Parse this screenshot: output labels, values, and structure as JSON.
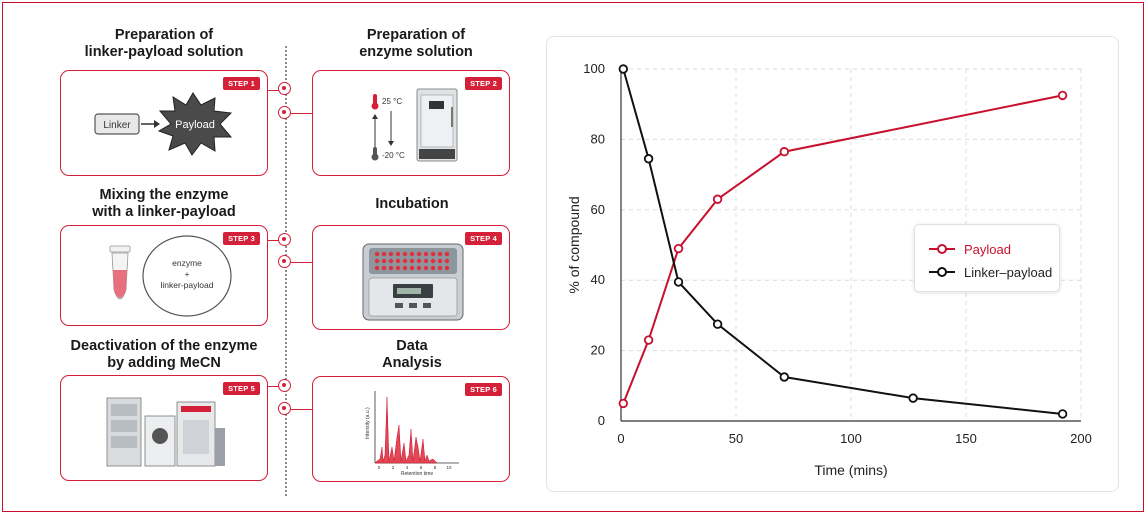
{
  "accent_color": "#d5203a",
  "workflow": {
    "steps": [
      {
        "heading": "Preparation of\nlinker-payload solution",
        "badge": "STEP 1",
        "linker": "Linker",
        "payload": "Payload"
      },
      {
        "heading": "Preparation of\nenzyme solution",
        "badge": "STEP 2",
        "temp_high": "25 °C",
        "temp_low": "-20 °C"
      },
      {
        "heading": "Mixing the enzyme\nwith a linker-payload",
        "badge": "STEP 3",
        "mix_line1": "enzyme",
        "mix_line2": "+",
        "mix_line3": "linker-payload"
      },
      {
        "heading": "Incubation",
        "badge": "STEP 4"
      },
      {
        "heading": "Deactivation of the enzyme\nby adding MeCN",
        "badge": "STEP 5"
      },
      {
        "heading": "Data\nAnalysis",
        "badge": "STEP 6",
        "ylabel": "Intensity (a.u.)",
        "xlabel": "Retention time",
        "ticks": [
          "0",
          "2",
          "4",
          "6",
          "8",
          "10"
        ]
      }
    ]
  },
  "chart_data": {
    "type": "line",
    "xlabel": "Time (mins)",
    "ylabel": "% of compound",
    "xlim": [
      0,
      200
    ],
    "ylim": [
      0,
      100
    ],
    "xticks": [
      0,
      50,
      100,
      150,
      200
    ],
    "yticks": [
      0,
      20,
      40,
      60,
      80,
      100
    ],
    "grid": true,
    "legend_position": "center-right",
    "series": [
      {
        "name": "Payload",
        "color": "#c8102e",
        "x": [
          1,
          12,
          25,
          42,
          71,
          192
        ],
        "y": [
          5,
          23,
          49,
          63,
          76.5,
          92.5
        ]
      },
      {
        "name": "Linker–payload",
        "color": "#111111",
        "x": [
          1,
          12,
          25,
          42,
          71,
          127,
          192
        ],
        "y": [
          100,
          74.5,
          39.5,
          27.5,
          12.5,
          6.5,
          2
        ]
      }
    ]
  }
}
